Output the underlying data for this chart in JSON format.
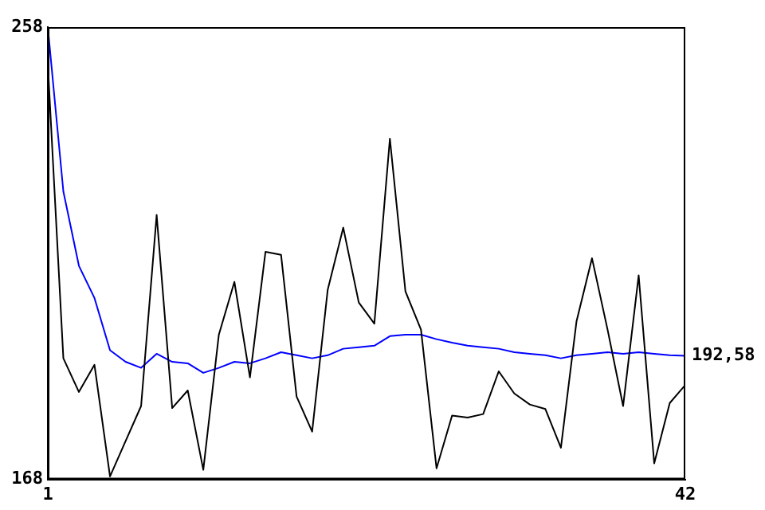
{
  "chart_data": {
    "type": "line",
    "x": [
      1,
      2,
      3,
      4,
      5,
      6,
      7,
      8,
      9,
      10,
      11,
      12,
      13,
      14,
      15,
      16,
      17,
      18,
      19,
      20,
      21,
      22,
      23,
      24,
      25,
      26,
      27,
      28,
      29,
      30,
      31,
      32,
      33,
      34,
      35,
      36,
      37,
      38,
      39,
      40,
      41,
      42
    ],
    "series": [
      {
        "color": "#000000",
        "values": [
          250.7,
          192.1,
          185.4,
          190.8,
          168.6,
          175.6,
          182.6,
          220.6,
          182.2,
          185.7,
          169.9,
          196.8,
          207.3,
          188.3,
          213.3,
          212.7,
          184.5,
          177.5,
          205.7,
          218.1,
          203.2,
          199.0,
          235.8,
          205.4,
          197.8,
          170.2,
          180.7,
          180.3,
          181.0,
          189.5,
          185.1,
          182.9,
          182.0,
          174.3,
          199.4,
          212.0,
          197.8,
          182.6,
          208.6,
          171.2,
          183.2,
          186.8
        ]
      },
      {
        "color": "#0000ff",
        "values": [
          258,
          225.3,
          210.5,
          204.1,
          193.7,
          191.4,
          190.2,
          193.0,
          191.4,
          191.1,
          189.2,
          190.2,
          191.4,
          191.1,
          192.1,
          193.3,
          192.7,
          192.1,
          192.7,
          194.0,
          194.3,
          194.6,
          196.5,
          196.8,
          196.8,
          195.9,
          195.2,
          194.6,
          194.3,
          194.0,
          193.3,
          193.0,
          192.7,
          192.1,
          192.7,
          193.0,
          193.3,
          193.0,
          193.3,
          193.0,
          192.7,
          192.58
        ]
      }
    ],
    "xlim": [
      1,
      42
    ],
    "xticks": [
      1,
      42
    ],
    "ylim": [
      168,
      258
    ],
    "yticks": [
      168,
      258
    ],
    "grid": false,
    "legend": false,
    "marker": "none",
    "line_style": "solid",
    "annotations": [
      {
        "text": "192,58",
        "x": 42,
        "y": 192.58
      }
    ]
  }
}
